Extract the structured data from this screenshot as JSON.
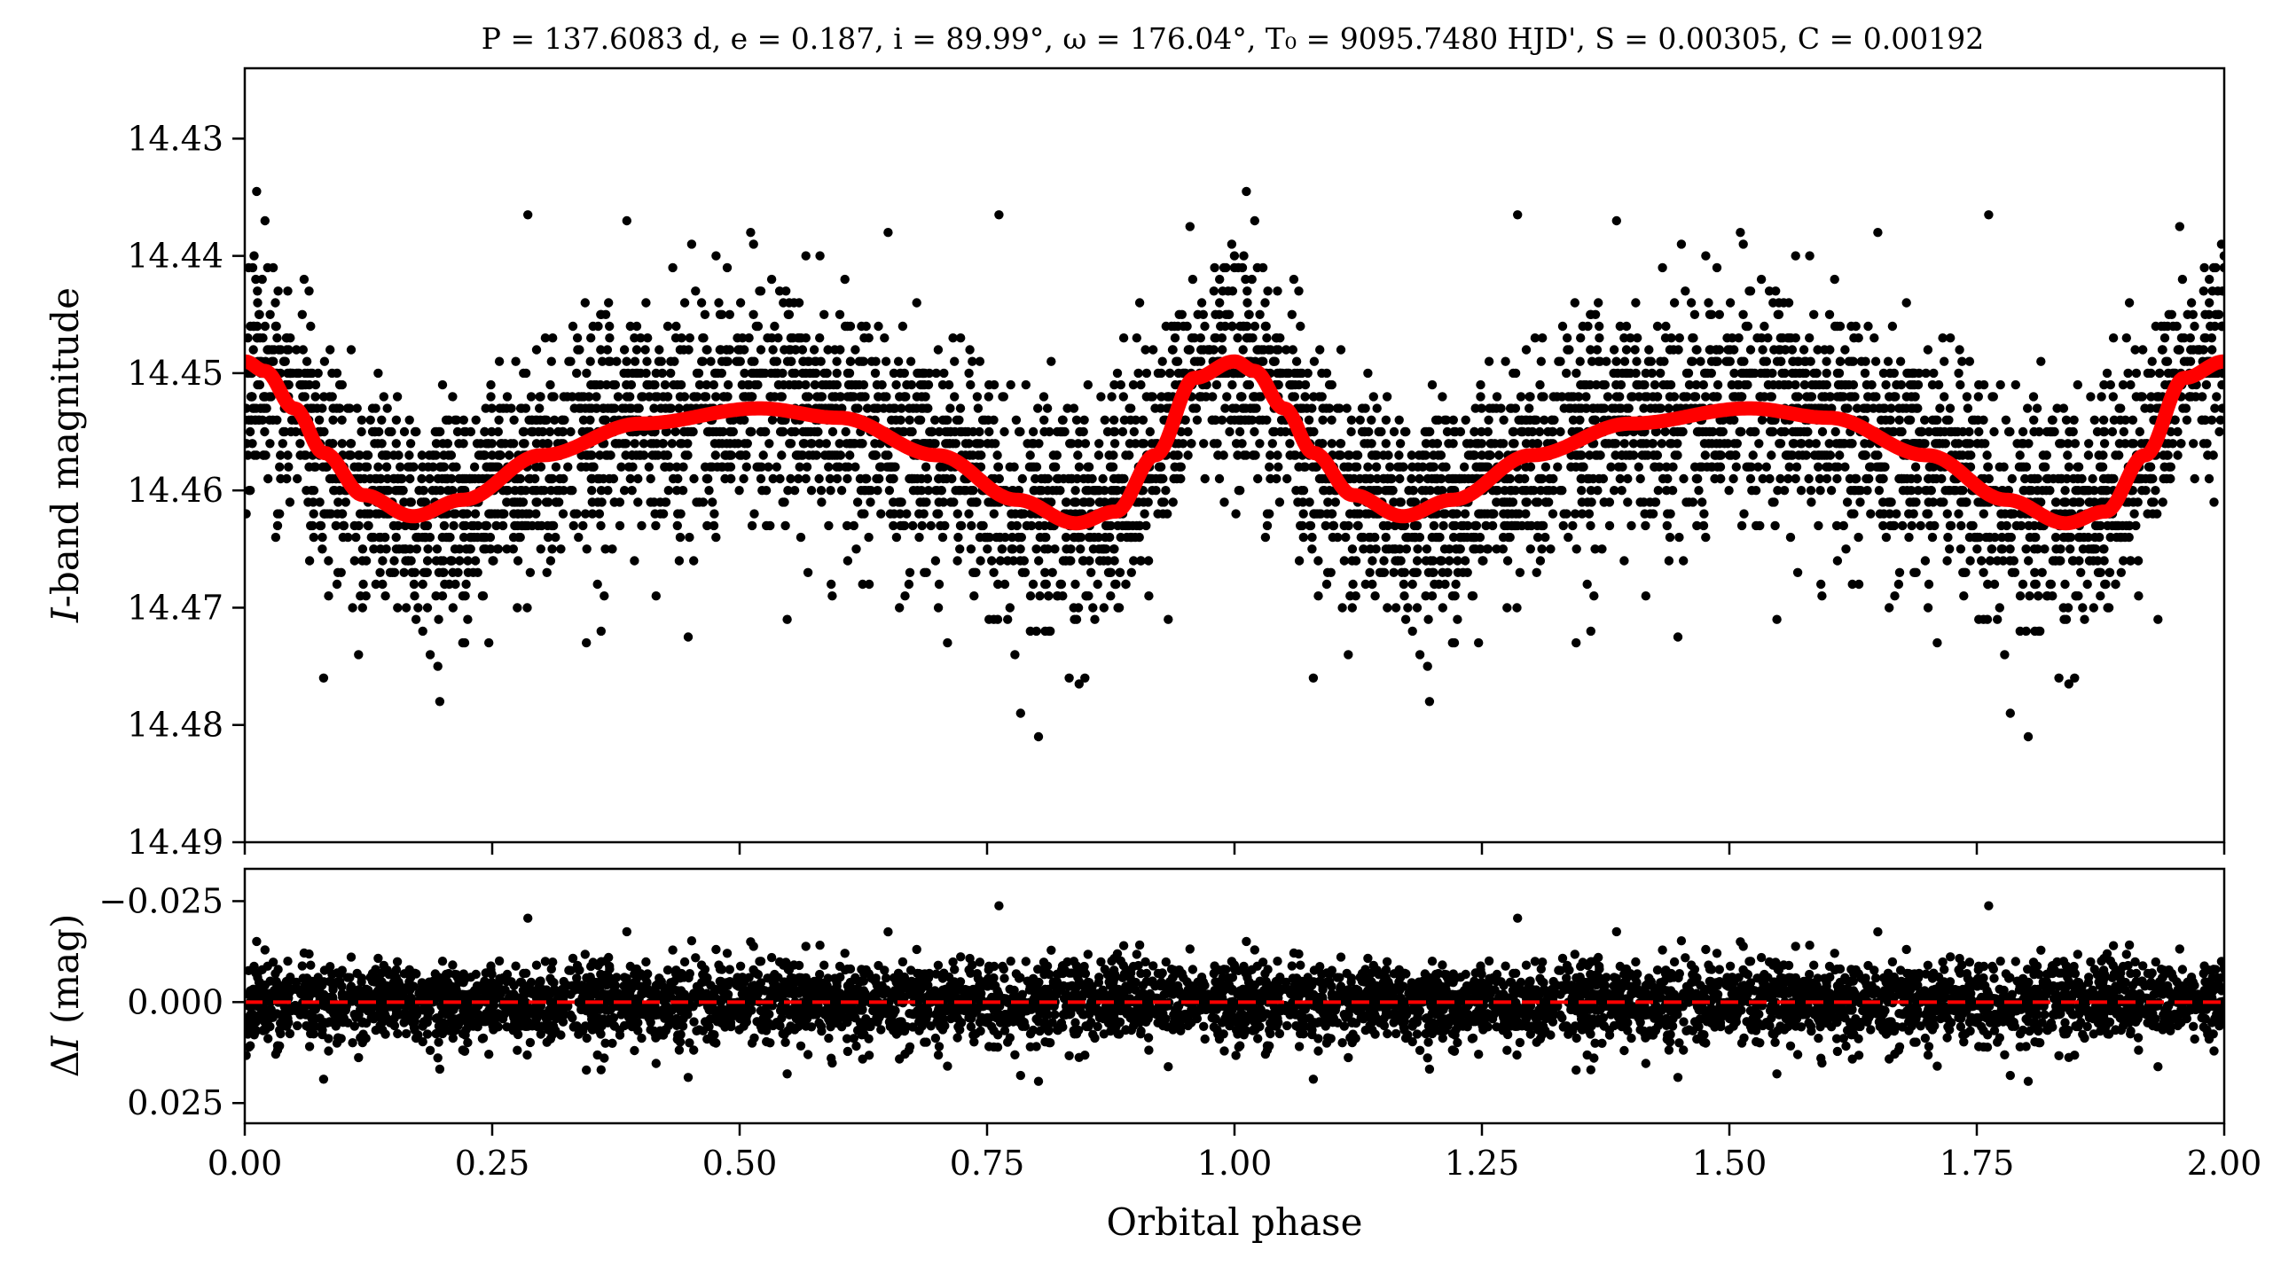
{
  "chart_data": [
    {
      "type": "scatter",
      "panel": "light-curve",
      "title": "P = 137.6083 d, e = 0.187, i = 89.99°, ω = 176.04°, T₀ = 9095.7480 HJD', S = 0.00305, C = 0.00192",
      "ylabel": "I-band magnitude",
      "xlabel": "",
      "xlim": [
        0.0,
        2.0
      ],
      "ylim": [
        14.49,
        14.424
      ],
      "y_inverted": true,
      "yticks": [
        "14.43",
        "14.44",
        "14.45",
        "14.46",
        "14.47",
        "14.48",
        "14.49"
      ],
      "xticks": [
        0.0,
        0.25,
        0.5,
        0.75,
        1.0,
        1.25,
        1.5,
        1.75,
        2.0
      ],
      "grid": false,
      "series": [
        {
          "kind": "points",
          "color": "#000000",
          "description_points": "approx. 3300 observations per phase cycle, repeated over two cycles",
          "model_ref": "model-curve",
          "scatter_sigma_mag": 0.0048,
          "selected_points": [
            {
              "x": 0.012,
              "y": 14.4345
            },
            {
              "x": 0.197,
              "y": 14.478
            },
            {
              "x": 0.115,
              "y": 14.474
            },
            {
              "x": 0.802,
              "y": 14.481
            },
            {
              "x": 0.762,
              "y": 14.4365
            },
            {
              "x": 0.833,
              "y": 14.476
            },
            {
              "x": 0.843,
              "y": 14.4765
            },
            {
              "x": 0.286,
              "y": 14.4365
            },
            {
              "x": 0.36,
              "y": 14.472
            },
            {
              "x": 0.448,
              "y": 14.4725
            },
            {
              "x": 0.548,
              "y": 14.471
            },
            {
              "x": 0.65,
              "y": 14.438
            },
            {
              "x": 0.71,
              "y": 14.473
            },
            {
              "x": 0.386,
              "y": 14.437
            },
            {
              "x": 0.955,
              "y": 14.4375
            }
          ]
        },
        {
          "kind": "line",
          "color": "#ff0000",
          "key": "model-curve",
          "model_samples": {
            "phase": [
              0.0,
              0.02,
              0.05,
              0.08,
              0.12,
              0.17,
              0.22,
              0.3,
              0.4,
              0.52,
              0.6,
              0.7,
              0.78,
              0.84,
              0.88,
              0.92,
              0.96,
              1.0
            ],
            "mag": [
              14.449,
              14.4498,
              14.453,
              14.4568,
              14.4604,
              14.4622,
              14.4608,
              14.457,
              14.4543,
              14.453,
              14.4538,
              14.457,
              14.4608,
              14.4628,
              14.4618,
              14.457,
              14.4504,
              14.449
            ]
          }
        }
      ]
    },
    {
      "type": "scatter",
      "panel": "residuals",
      "xlabel": "Orbital phase",
      "ylabel": "ΔI (mag)",
      "xlim": [
        0.0,
        2.0
      ],
      "ylim": [
        0.03,
        -0.033
      ],
      "y_inverted": true,
      "yticks": [
        "−0.025",
        "0.000",
        "0.025"
      ],
      "yticks_values": [
        -0.025,
        0.0,
        0.025
      ],
      "xticks": [
        "0.00",
        "0.25",
        "0.50",
        "0.75",
        "1.00",
        "1.25",
        "1.50",
        "1.75",
        "2.00"
      ],
      "grid": false,
      "series": [
        {
          "kind": "points",
          "color": "#000000",
          "scatter_sigma_mag": 0.0048
        },
        {
          "kind": "line",
          "style": "dashed",
          "color": "#ff0000",
          "y": 0.0
        }
      ]
    }
  ]
}
